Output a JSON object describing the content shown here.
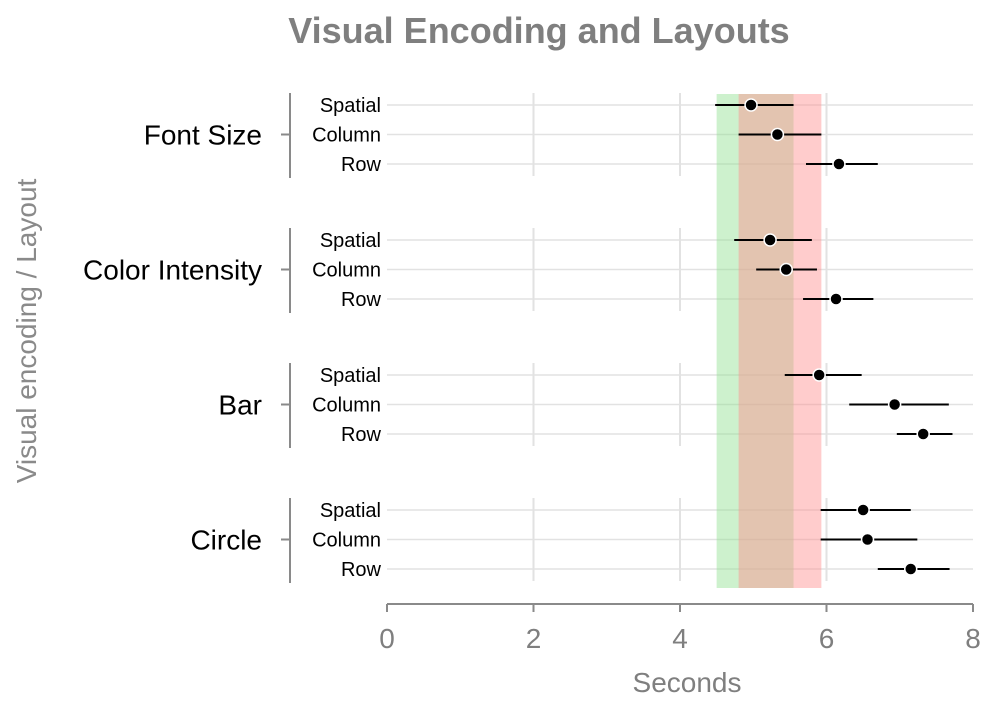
{
  "chart_data": {
    "type": "scatter",
    "title": "Visual Encoding and Layouts",
    "xlabel": "Seconds",
    "ylabel": "Visual encoding / Layout",
    "xlim": [
      0,
      8
    ],
    "xticks": [
      "0",
      "2",
      "4",
      "6",
      "8"
    ],
    "grid": true,
    "bands": [
      {
        "from": 4.5,
        "to": 5.55,
        "color": "#90e090",
        "opacity": 0.45
      },
      {
        "from": 4.8,
        "to": 5.93,
        "color": "#ff8f8f",
        "opacity": 0.45
      }
    ],
    "groups": [
      {
        "name": "Font Size",
        "rows": [
          {
            "label": "Spatial",
            "mean": 4.97,
            "low": 4.48,
            "high": 5.55
          },
          {
            "label": "Column",
            "mean": 5.33,
            "low": 4.8,
            "high": 5.93
          },
          {
            "label": "Row",
            "mean": 6.17,
            "low": 5.72,
            "high": 6.7
          }
        ]
      },
      {
        "name": "Color Intensity",
        "rows": [
          {
            "label": "Spatial",
            "mean": 5.23,
            "low": 4.74,
            "high": 5.8
          },
          {
            "label": "Column",
            "mean": 5.45,
            "low": 5.04,
            "high": 5.87
          },
          {
            "label": "Row",
            "mean": 6.13,
            "low": 5.68,
            "high": 6.64
          }
        ]
      },
      {
        "name": "Bar",
        "rows": [
          {
            "label": "Spatial",
            "mean": 5.9,
            "low": 5.43,
            "high": 6.48
          },
          {
            "label": "Column",
            "mean": 6.93,
            "low": 6.31,
            "high": 7.67
          },
          {
            "label": "Row",
            "mean": 7.32,
            "low": 6.96,
            "high": 7.72
          }
        ]
      },
      {
        "name": "Circle",
        "rows": [
          {
            "label": "Spatial",
            "mean": 6.5,
            "low": 5.92,
            "high": 7.15
          },
          {
            "label": "Column",
            "mean": 6.56,
            "low": 5.92,
            "high": 7.24
          },
          {
            "label": "Row",
            "mean": 7.15,
            "low": 6.7,
            "high": 7.68
          }
        ]
      }
    ]
  }
}
